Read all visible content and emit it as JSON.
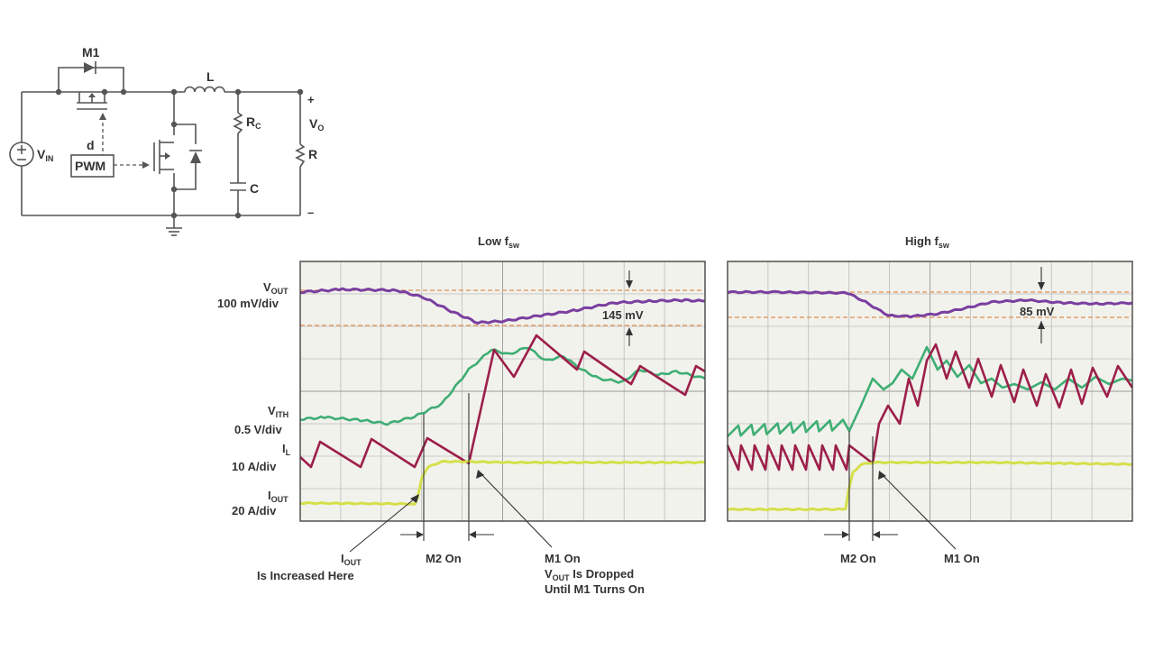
{
  "schematic": {
    "m1_label": "M1",
    "inductor_label": "L",
    "rc_label": "R",
    "rc_sub": "C",
    "c_label": "C",
    "r_label": "R",
    "vo_label": "V",
    "vo_sub": "O",
    "plus": "+",
    "minus": "–",
    "vin_label": "V",
    "vin_sub": "IN",
    "d_label": "d",
    "pwm_label": "PWM"
  },
  "plot_low": {
    "title": "Low f",
    "title_sub": "sw",
    "delta_label": "145 mV"
  },
  "plot_high": {
    "title": "High f",
    "title_sub": "sw",
    "delta_label": "85 mV"
  },
  "channels": {
    "vout_name": "V",
    "vout_sub": "OUT",
    "vout_scale": "100 mV/div",
    "vith_name": "V",
    "vith_sub": "ITH",
    "vith_scale": "0.5 V/div",
    "il_name": "I",
    "il_sub": "L",
    "il_scale": "10 A/div",
    "iout_name": "I",
    "iout_sub": "OUT",
    "iout_scale": "20 A/div"
  },
  "annotations": {
    "iout_inc_name": "I",
    "iout_inc_sub": "OUT",
    "iout_inc_rest": "Is Increased Here",
    "m2_on_low": "M2 On",
    "m1_on_low_1": "M1 On",
    "m1_on_low_2_name": "V",
    "m1_on_low_2_sub": "OUT",
    "m1_on_low_2_rest": " Is Dropped",
    "m1_on_low_3": "Until M1 Turns On",
    "m2_on_high": "M2 On",
    "m1_on_high": "M1 On"
  },
  "colors": {
    "vout": "#7a3fa0",
    "vith": "#3fae74",
    "il": "#9c1f4a",
    "iout": "#d4e04a",
    "marker": "#e09050"
  }
}
